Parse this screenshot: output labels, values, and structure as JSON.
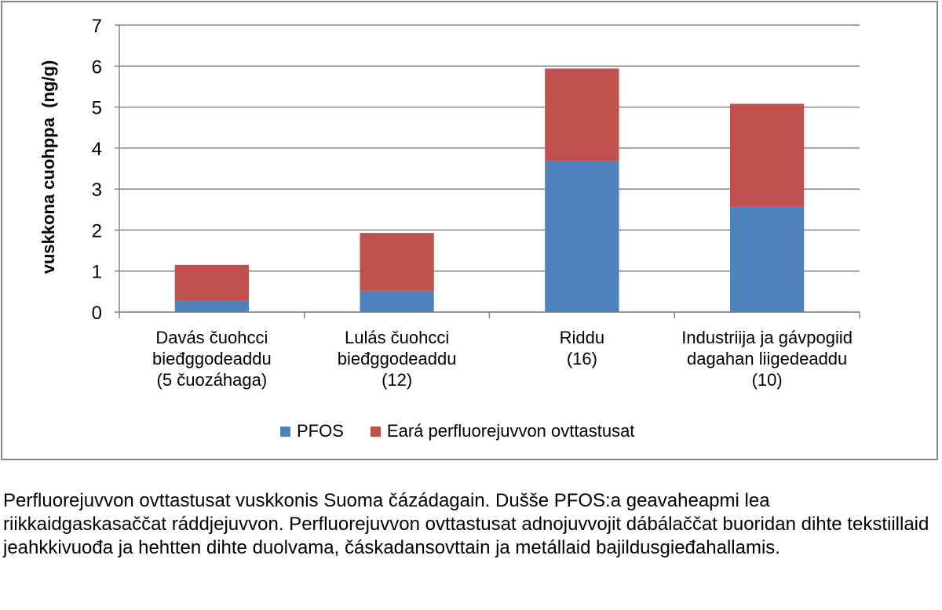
{
  "chart_data": {
    "type": "bar",
    "stacked": true,
    "categories": [
      [
        "Davás čuohcci",
        "bieđggodeaddu",
        "(5 čuozáhaga)"
      ],
      [
        "Lulás čuohcci",
        "bieđggodeaddu",
        "(12)"
      ],
      [
        "Riddu",
        "(16)"
      ],
      [
        "Industriija ja gávpogiid",
        "dagahan liigedeaddu",
        "(10)"
      ]
    ],
    "series": [
      {
        "name": "PFOS",
        "color": "#4F81BD",
        "values": [
          0.28,
          0.52,
          3.69,
          2.58
        ]
      },
      {
        "name": "Eará perfluorejuvvon ovttastusat",
        "color": "#C0504D",
        "values": [
          0.87,
          1.41,
          2.25,
          2.5
        ]
      }
    ],
    "ylabel": "vuskkona cuohppa  (ng/g)",
    "xlabel": "",
    "ylim": [
      0,
      7
    ],
    "yticks": [
      "0",
      "1",
      "2",
      "3",
      "4",
      "5",
      "6",
      "7"
    ],
    "grid": true,
    "legend_position": "bottom"
  },
  "caption": "Perfluorejuvvon ovttastusat vuskkonis Suoma čázádagain. Dušše PFOS:a geavaheapmi lea riikkaidgaskasaččat ráddjejuvvon. Perfluorejuvvon ovttastusat adnojuvvojit dábálaččat buoridan dihte tekstiillaid jeahkkivuođa ja hehtten dihte duolvama, čáskadansovttain ja metállaid bajildusgieđahallamis."
}
